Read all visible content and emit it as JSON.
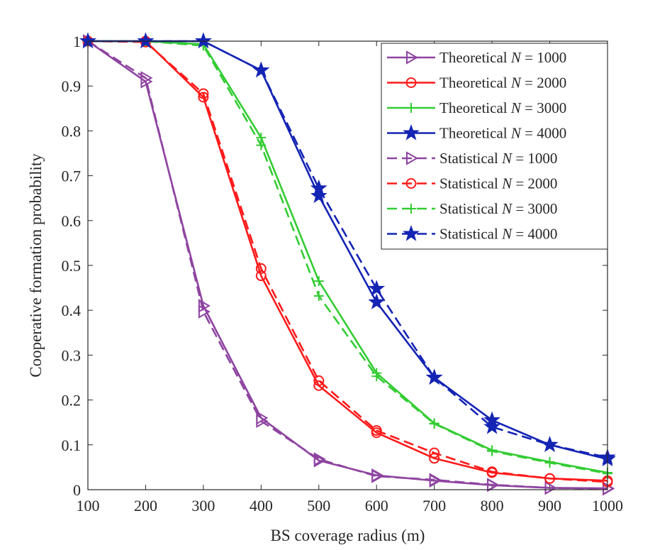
{
  "chart_data": {
    "type": "line",
    "title": "",
    "xlabel": "BS coverage radius (m)",
    "ylabel": "Cooperative formation probability",
    "xlim": [
      100,
      1000
    ],
    "ylim": [
      0,
      1
    ],
    "x": [
      100,
      200,
      300,
      400,
      500,
      600,
      700,
      800,
      900,
      1000
    ],
    "xticks": [
      "100",
      "200",
      "300",
      "400",
      "500",
      "600",
      "700",
      "800",
      "900",
      "1000"
    ],
    "yticks": [
      "0",
      "0.1",
      "0.2",
      "0.3",
      "0.4",
      "0.5",
      "0.6",
      "0.7",
      "0.8",
      "0.9",
      "1"
    ],
    "grid": false,
    "legend_position": "top-right",
    "series": [
      {
        "name_prefix": "Theoretical ",
        "name_var": "N",
        "name_suffix": " = 1000",
        "color": "#8E44A0",
        "marker": "triangle-right",
        "dash": "solid",
        "values": [
          1.0,
          0.91,
          0.41,
          0.16,
          0.065,
          0.032,
          0.02,
          0.01,
          0.004,
          0.003
        ]
      },
      {
        "name_prefix": "Theoretical ",
        "name_var": "N",
        "name_suffix": " = 2000",
        "color": "#FF1A1A",
        "marker": "circle",
        "dash": "solid",
        "values": [
          1.0,
          1.0,
          0.875,
          0.477,
          0.232,
          0.127,
          0.07,
          0.038,
          0.025,
          0.02
        ]
      },
      {
        "name_prefix": "Theoretical ",
        "name_var": "N",
        "name_suffix": " = 3000",
        "color": "#33CC33",
        "marker": "plus",
        "dash": "solid",
        "values": [
          1.0,
          1.0,
          0.993,
          0.785,
          0.465,
          0.26,
          0.148,
          0.088,
          0.062,
          0.038
        ]
      },
      {
        "name_prefix": "Theoretical ",
        "name_var": "N",
        "name_suffix": " = 4000",
        "color": "#1424B4",
        "marker": "star",
        "dash": "solid",
        "values": [
          1.0,
          1.0,
          1.0,
          0.935,
          0.655,
          0.418,
          0.25,
          0.155,
          0.1,
          0.068
        ]
      },
      {
        "name_prefix": "Statistical ",
        "name_var": "N",
        "name_suffix": " = 1000",
        "color": "#8E44A0",
        "marker": "triangle-right",
        "dash": "dashed",
        "values": [
          1.0,
          0.918,
          0.397,
          0.153,
          0.068,
          0.03,
          0.022,
          0.011,
          0.004,
          0.002
        ]
      },
      {
        "name_prefix": "Statistical ",
        "name_var": "N",
        "name_suffix": " = 2000",
        "color": "#FF1A1A",
        "marker": "circle",
        "dash": "dashed",
        "values": [
          1.0,
          0.998,
          0.883,
          0.493,
          0.243,
          0.132,
          0.082,
          0.04,
          0.025,
          0.017
        ]
      },
      {
        "name_prefix": "Statistical ",
        "name_var": "N",
        "name_suffix": " = 3000",
        "color": "#33CC33",
        "marker": "plus",
        "dash": "dashed",
        "values": [
          1.0,
          1.0,
          0.99,
          0.768,
          0.432,
          0.253,
          0.147,
          0.086,
          0.06,
          0.036
        ]
      },
      {
        "name_prefix": "Statistical ",
        "name_var": "N",
        "name_suffix": " = 4000",
        "color": "#1424B4",
        "marker": "star",
        "dash": "dashed",
        "values": [
          1.0,
          1.0,
          1.0,
          0.935,
          0.672,
          0.448,
          0.25,
          0.14,
          0.1,
          0.072
        ]
      }
    ]
  }
}
